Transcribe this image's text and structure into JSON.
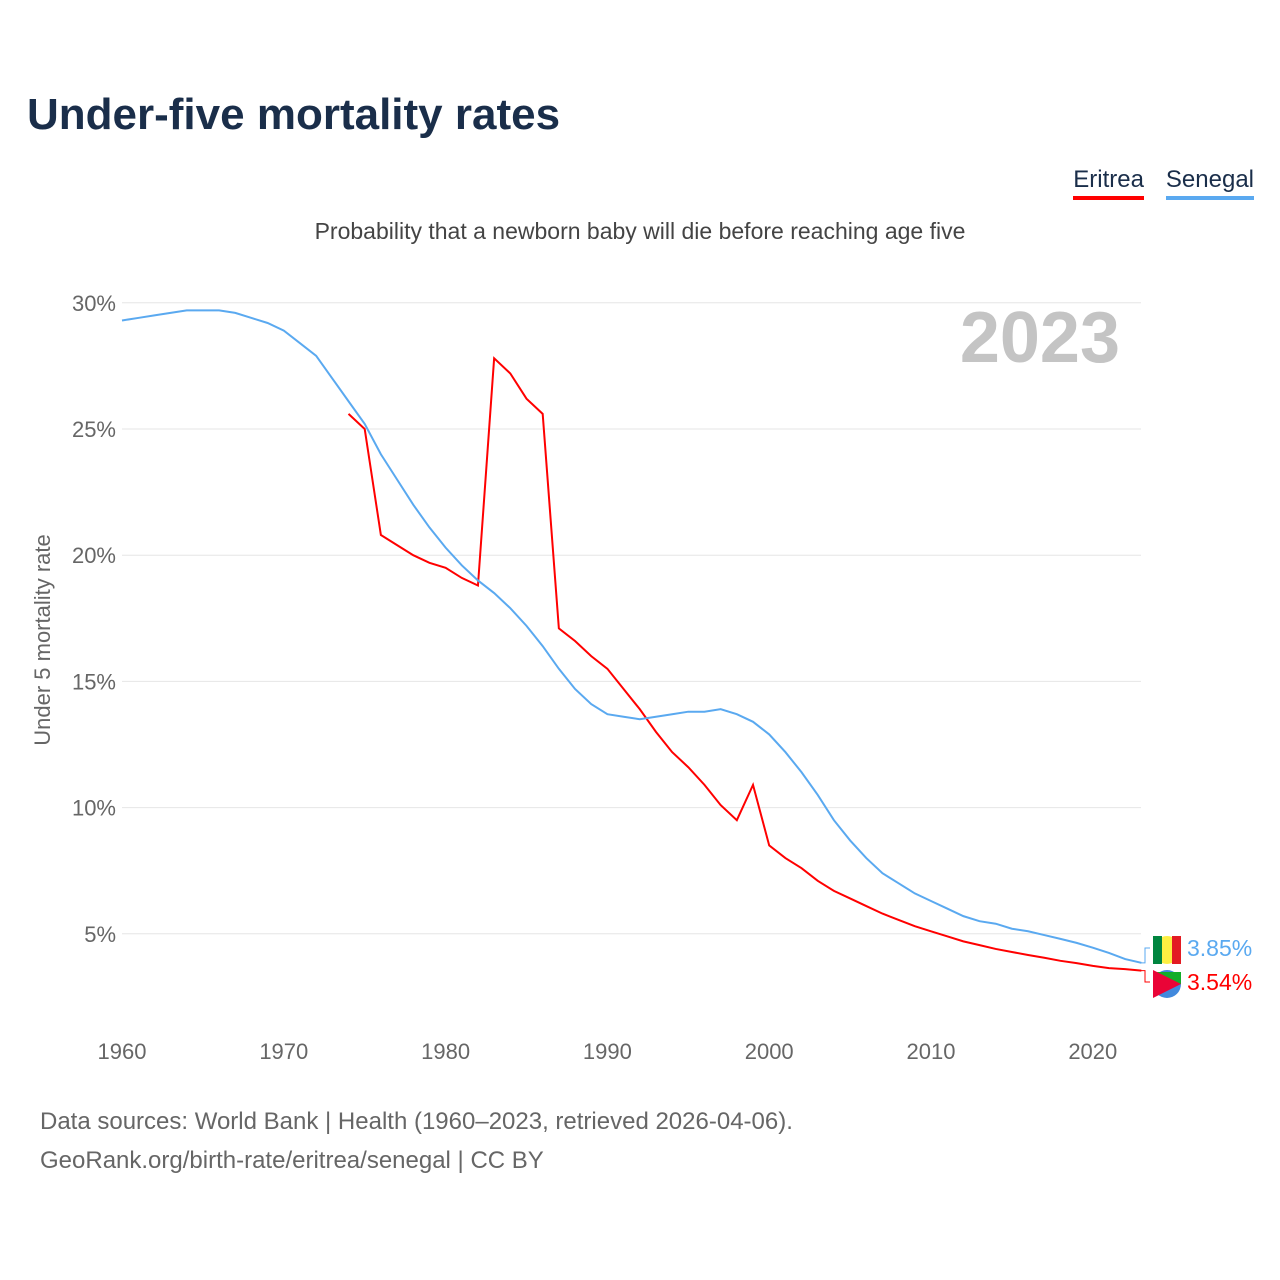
{
  "title": "Under-five mortality rates",
  "subtitle": "Probability that a newborn baby will die before reaching age five",
  "sources": [
    "Data sources: World Bank | Health (1960–2023, retrieved 2026-04-06).",
    "GeoRank.org/birth-rate/eritrea/senegal | CC BY"
  ],
  "chart_data": {
    "type": "line",
    "title": "Under-five mortality rates",
    "ylabel": "Under 5 mortality rate",
    "xlabel": "",
    "year_label": "2023",
    "xlim": [
      1960,
      2023
    ],
    "ylim": [
      0,
      30
    ],
    "xticks": [
      1960,
      1970,
      1980,
      1990,
      2000,
      2010,
      2020
    ],
    "yticks": [
      {
        "v": 5,
        "l": "5%"
      },
      {
        "v": 10,
        "l": "10%"
      },
      {
        "v": 15,
        "l": "15%"
      },
      {
        "v": 20,
        "l": "20%"
      },
      {
        "v": 25,
        "l": "25%"
      },
      {
        "v": 30,
        "l": "30%"
      }
    ],
    "legend": "top-right",
    "grid": true,
    "series": [
      {
        "name": "Eritrea",
        "color": "#ff0000",
        "end_label": "3.54%",
        "start": 1974,
        "values": [
          25.6,
          25.0,
          20.8,
          20.4,
          20.0,
          19.7,
          19.5,
          19.1,
          18.8,
          27.8,
          27.2,
          26.2,
          25.6,
          17.1,
          16.6,
          16.0,
          15.5,
          14.7,
          13.9,
          13.0,
          12.2,
          11.6,
          10.9,
          10.1,
          9.5,
          10.9,
          8.5,
          8.0,
          7.6,
          7.1,
          6.7,
          6.4,
          6.1,
          5.8,
          5.55,
          5.3,
          5.1,
          4.9,
          4.7,
          4.55,
          4.4,
          4.28,
          4.16,
          4.05,
          3.93,
          3.84,
          3.73,
          3.64,
          3.6,
          3.54
        ]
      },
      {
        "name": "Senegal",
        "color": "#5aa9f0",
        "end_label": "3.85%",
        "start": 1960,
        "values": [
          29.3,
          29.4,
          29.5,
          29.6,
          29.7,
          29.7,
          29.7,
          29.6,
          29.4,
          29.2,
          28.9,
          28.4,
          27.9,
          27.0,
          26.1,
          25.2,
          24.0,
          23.0,
          22.0,
          21.1,
          20.3,
          19.6,
          19.0,
          18.5,
          17.9,
          17.2,
          16.4,
          15.5,
          14.7,
          14.1,
          13.7,
          13.6,
          13.5,
          13.6,
          13.7,
          13.8,
          13.8,
          13.9,
          13.7,
          13.4,
          12.9,
          12.2,
          11.4,
          10.5,
          9.5,
          8.7,
          8.0,
          7.4,
          7.0,
          6.6,
          6.3,
          6.0,
          5.7,
          5.5,
          5.4,
          5.2,
          5.1,
          4.95,
          4.8,
          4.64,
          4.45,
          4.24,
          4.0,
          3.85
        ]
      }
    ]
  }
}
